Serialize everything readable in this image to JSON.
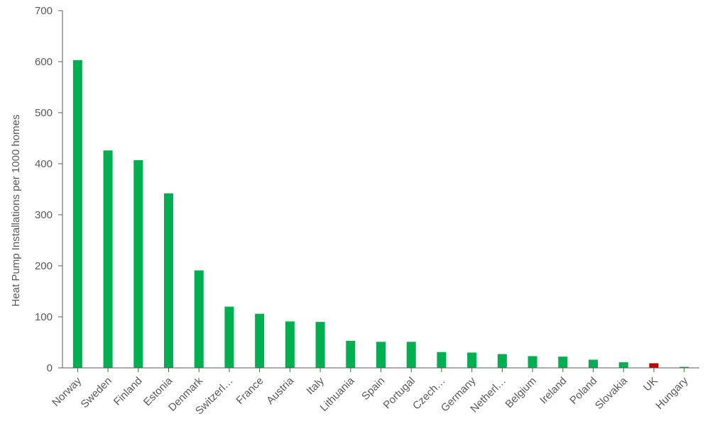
{
  "chart_data": {
    "type": "bar",
    "ylabel": "Heat Pump Installations per 1000 homes",
    "xlabel": "",
    "ylim": [
      0,
      700
    ],
    "yticks": [
      0,
      100,
      200,
      300,
      400,
      500,
      600,
      700
    ],
    "grid": false,
    "categories": [
      "Norway",
      "Sweden",
      "Finland",
      "Estonia",
      "Denmark",
      "Switzerl…",
      "France",
      "Austria",
      "Italy",
      "Lithuania",
      "Spain",
      "Portugal",
      "Czech…",
      "Germany",
      "Netherl…",
      "Belgium",
      "Ireland",
      "Poland",
      "Slovakia",
      "UK",
      "Hungary"
    ],
    "values": [
      603,
      426,
      407,
      342,
      191,
      120,
      106,
      91,
      90,
      53,
      51,
      51,
      31,
      30,
      27,
      23,
      22,
      16,
      11,
      9,
      2
    ],
    "colors": {
      "default": "#00b050",
      "highlight": "#c00000",
      "axis": "#595959"
    },
    "highlight_categories": [
      "UK"
    ]
  }
}
